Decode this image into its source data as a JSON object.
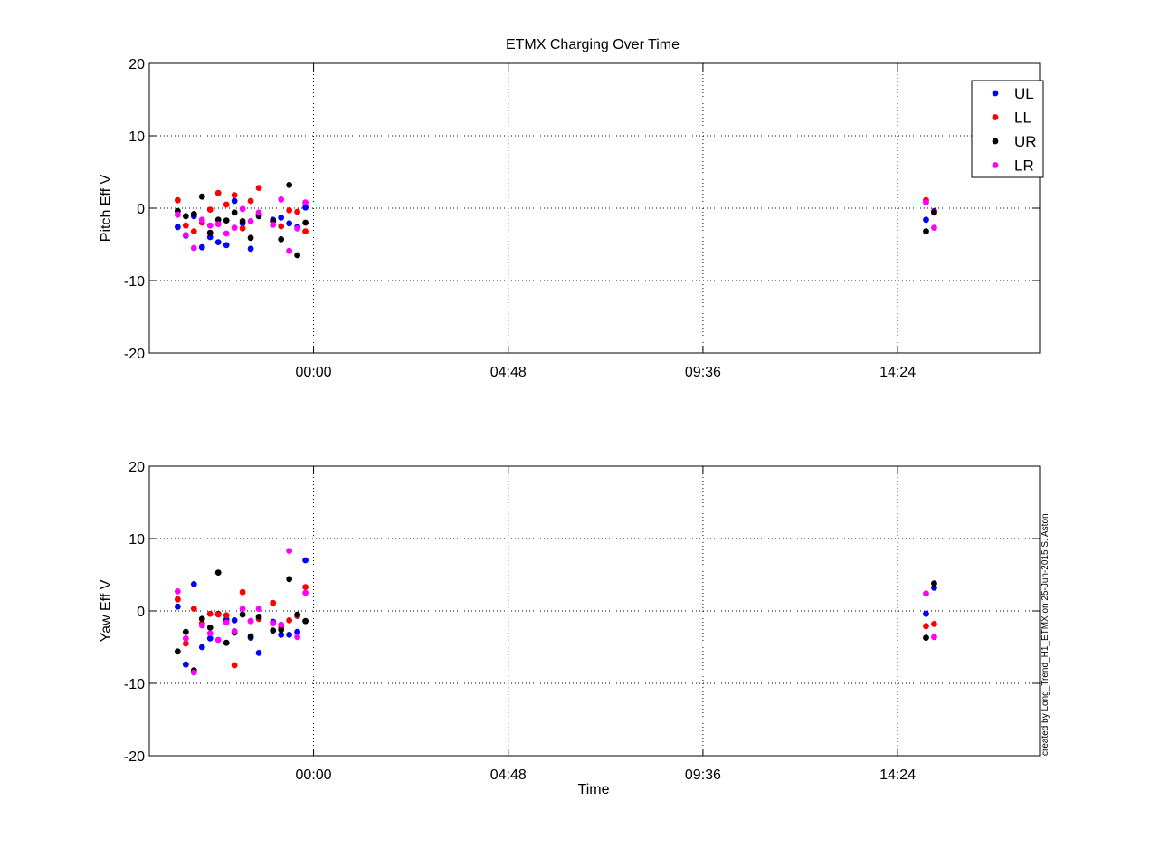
{
  "chart_data": {
    "type": "scatter",
    "title": "ETMX Charging Over Time",
    "xlabel": "Time",
    "x_unit": "hours relative to 00:00",
    "x_ticks": [
      {
        "value": 0,
        "label": "00:00"
      },
      {
        "value": 4.8,
        "label": "04:48"
      },
      {
        "value": 9.6,
        "label": "09:36"
      },
      {
        "value": 14.4,
        "label": "14:24"
      }
    ],
    "xlim": [
      -4.05,
      17.9
    ],
    "legend_position": "top-right",
    "grid": true,
    "credit": "created by Long_Trend_H1_ETMX on 25-Jun-2015 S. Aston",
    "series_style": [
      {
        "name": "UL",
        "color": "#0000ff"
      },
      {
        "name": "LL",
        "color": "#ff0000"
      },
      {
        "name": "UR",
        "color": "#000000"
      },
      {
        "name": "LR",
        "color": "#ff00ff"
      }
    ],
    "panels": [
      {
        "ylabel": "Pitch Eff V",
        "ylim": [
          -20,
          20
        ],
        "yticks": [
          -20,
          -10,
          0,
          10,
          20
        ],
        "series": [
          {
            "name": "UL",
            "x": [
              -3.35,
              -3.15,
              -2.95,
              -2.75,
              -2.55,
              -2.35,
              -2.15,
              -1.95,
              -1.75,
              -1.55,
              -1.35,
              -1.0,
              -0.8,
              -0.6,
              -0.4,
              -0.2,
              15.1,
              15.3
            ],
            "y": [
              -2.6,
              -3.8,
              -1.1,
              -5.4,
              -4.0,
              -4.7,
              -5.1,
              1.0,
              -2.1,
              -5.6,
              -0.8,
              -1.6,
              -1.3,
              -2.1,
              -2.6,
              0.1,
              -1.6,
              -0.4
            ]
          },
          {
            "name": "LL",
            "x": [
              -3.35,
              -3.15,
              -2.95,
              -2.75,
              -2.55,
              -2.35,
              -2.15,
              -1.95,
              -1.75,
              -1.55,
              -1.35,
              -1.0,
              -0.8,
              -0.6,
              -0.4,
              -0.2,
              15.1,
              15.3
            ],
            "y": [
              1.1,
              -2.4,
              -3.2,
              -2.0,
              -0.2,
              2.1,
              0.5,
              1.8,
              -2.8,
              1.0,
              2.8,
              -1.8,
              -2.5,
              -0.3,
              -0.5,
              -3.2,
              1.1,
              -0.5
            ]
          },
          {
            "name": "UR",
            "x": [
              -3.35,
              -3.15,
              -2.95,
              -2.75,
              -2.55,
              -2.35,
              -2.15,
              -1.95,
              -1.75,
              -1.55,
              -1.35,
              -1.0,
              -0.8,
              -0.6,
              -0.4,
              -0.2,
              15.1,
              15.3
            ],
            "y": [
              -0.4,
              -1.1,
              -0.8,
              1.6,
              -3.4,
              -1.6,
              -1.7,
              -0.6,
              -1.8,
              -4.1,
              -1.1,
              -1.8,
              -4.3,
              3.2,
              -6.5,
              -2.0,
              -3.2,
              -0.6
            ]
          },
          {
            "name": "LR",
            "x": [
              -3.35,
              -3.15,
              -2.95,
              -2.75,
              -2.55,
              -2.35,
              -2.15,
              -1.95,
              -1.75,
              -1.55,
              -1.35,
              -1.0,
              -0.8,
              -0.6,
              -0.4,
              -0.2,
              15.1,
              15.3
            ],
            "y": [
              -0.9,
              -3.7,
              -5.5,
              -1.6,
              -2.4,
              -2.2,
              -3.5,
              -2.7,
              -0.1,
              -1.8,
              -0.6,
              -2.3,
              1.2,
              -5.9,
              -2.8,
              0.8,
              0.8,
              -2.7
            ]
          }
        ]
      },
      {
        "ylabel": "Yaw Eff V",
        "ylim": [
          -20,
          20
        ],
        "yticks": [
          -20,
          -10,
          0,
          10,
          20
        ],
        "series": [
          {
            "name": "UL",
            "x": [
              -3.35,
              -3.15,
              -2.95,
              -2.75,
              -2.55,
              -2.35,
              -2.15,
              -1.95,
              -1.75,
              -1.55,
              -1.35,
              -1.0,
              -0.8,
              -0.6,
              -0.4,
              -0.2,
              15.1,
              15.3
            ],
            "y": [
              0.6,
              -7.4,
              3.7,
              -5.0,
              -3.8,
              -0.4,
              -1.2,
              -1.3,
              -0.5,
              -3.7,
              -5.8,
              -1.5,
              -3.3,
              -3.3,
              -2.9,
              7.0,
              -0.4,
              3.2
            ]
          },
          {
            "name": "LL",
            "x": [
              -3.35,
              -3.15,
              -2.95,
              -2.75,
              -2.55,
              -2.35,
              -2.15,
              -1.95,
              -1.75,
              -1.55,
              -1.35,
              -1.0,
              -0.8,
              -0.6,
              -0.4,
              -0.2,
              15.1,
              15.3
            ],
            "y": [
              1.6,
              -4.5,
              0.3,
              -1.7,
              -0.4,
              -0.5,
              -0.6,
              -7.5,
              2.6,
              -1.4,
              -1.1,
              1.1,
              -2.2,
              -1.3,
              -0.7,
              3.3,
              -2.1,
              -1.8
            ]
          },
          {
            "name": "UR",
            "x": [
              -3.35,
              -3.15,
              -2.95,
              -2.75,
              -2.55,
              -2.35,
              -2.15,
              -1.95,
              -1.75,
              -1.55,
              -1.35,
              -1.0,
              -0.8,
              -0.6,
              -0.4,
              -0.2,
              15.1,
              15.3
            ],
            "y": [
              -5.6,
              -2.9,
              -8.2,
              -1.1,
              -2.3,
              5.3,
              -4.4,
              -3.0,
              -0.5,
              -3.5,
              -0.8,
              -2.7,
              -2.6,
              4.4,
              -0.5,
              -1.4,
              -3.7,
              3.8
            ]
          },
          {
            "name": "LR",
            "x": [
              -3.35,
              -3.15,
              -2.95,
              -2.75,
              -2.55,
              -2.35,
              -2.15,
              -1.95,
              -1.75,
              -1.55,
              -1.35,
              -1.0,
              -0.8,
              -0.6,
              -0.4,
              -0.2,
              15.1,
              15.3
            ],
            "y": [
              2.7,
              -3.8,
              -8.5,
              -2.0,
              -3.1,
              -4.0,
              -1.6,
              -2.8,
              0.3,
              -1.4,
              0.3,
              -1.7,
              -1.9,
              8.3,
              -3.6,
              2.5,
              2.4,
              -3.6
            ]
          }
        ]
      }
    ]
  }
}
